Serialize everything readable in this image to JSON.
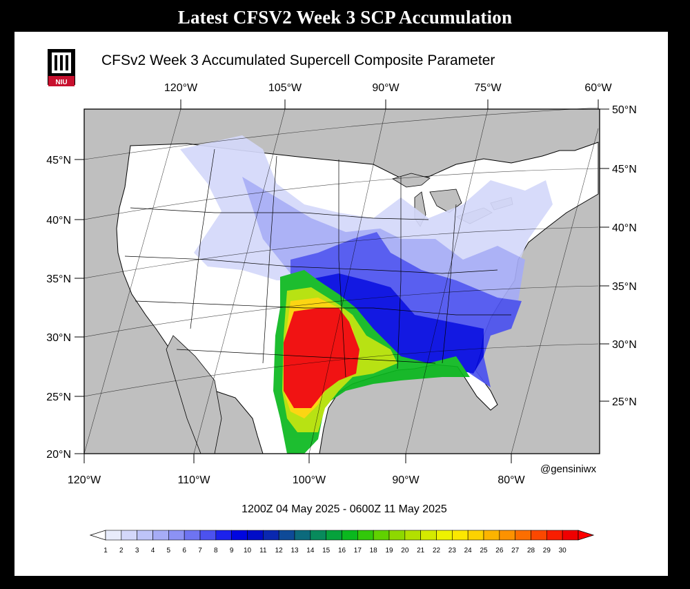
{
  "header": {
    "title": "Latest CFSV2 Week 3 SCP Accumulation"
  },
  "map": {
    "title": "CFSv2 Week 3 Accumulated Supercell Composite Parameter",
    "logo": {
      "icon": "niu-seal-icon",
      "text": "NIU"
    },
    "credit": "@gensiniwx",
    "valid_period": "1200Z 04  May  2025  - 0600Z 11  May  2025",
    "top_lon_labels": [
      "120°W",
      "105°W",
      "90°W",
      "75°W",
      "60°W"
    ],
    "bottom_lon_labels": [
      "120°W",
      "110°W",
      "100°W",
      "90°W",
      "80°W"
    ],
    "left_lat_labels": [
      "45°N",
      "40°N",
      "35°N",
      "30°N",
      "25°N",
      "20°N"
    ],
    "right_lat_labels": [
      "50°N",
      "45°N",
      "40°N",
      "35°N",
      "30°N",
      "25°N"
    ],
    "colors": {
      "land": "#ffffff",
      "water": "#bfbfbf",
      "border": "#000000"
    }
  },
  "colorbar": {
    "labels": [
      "1",
      "2",
      "3",
      "4",
      "5",
      "6",
      "7",
      "8",
      "9",
      "10",
      "11",
      "12",
      "13",
      "14",
      "15",
      "16",
      "17",
      "18",
      "19",
      "20",
      "21",
      "22",
      "23",
      "24",
      "25",
      "26",
      "27",
      "28",
      "29",
      "30"
    ],
    "colors": [
      "#e8ecfb",
      "#d4d8fa",
      "#bec4f8",
      "#a6acf6",
      "#8c92f4",
      "#6e74f2",
      "#4c52ef",
      "#1c22ec",
      "#0006e0",
      "#000cc8",
      "#0a28b0",
      "#0e4a98",
      "#0c6a7c",
      "#088a5c",
      "#06a23c",
      "#0ab81e",
      "#32c80a",
      "#60d200",
      "#8ed800",
      "#b2e000",
      "#d4ea00",
      "#eef200",
      "#fce800",
      "#fcd200",
      "#fcb400",
      "#fc9200",
      "#fc6e00",
      "#fc4800",
      "#f81e00",
      "#f00000"
    ],
    "min_color": "#ffffff",
    "max_color": "#ff0000"
  }
}
